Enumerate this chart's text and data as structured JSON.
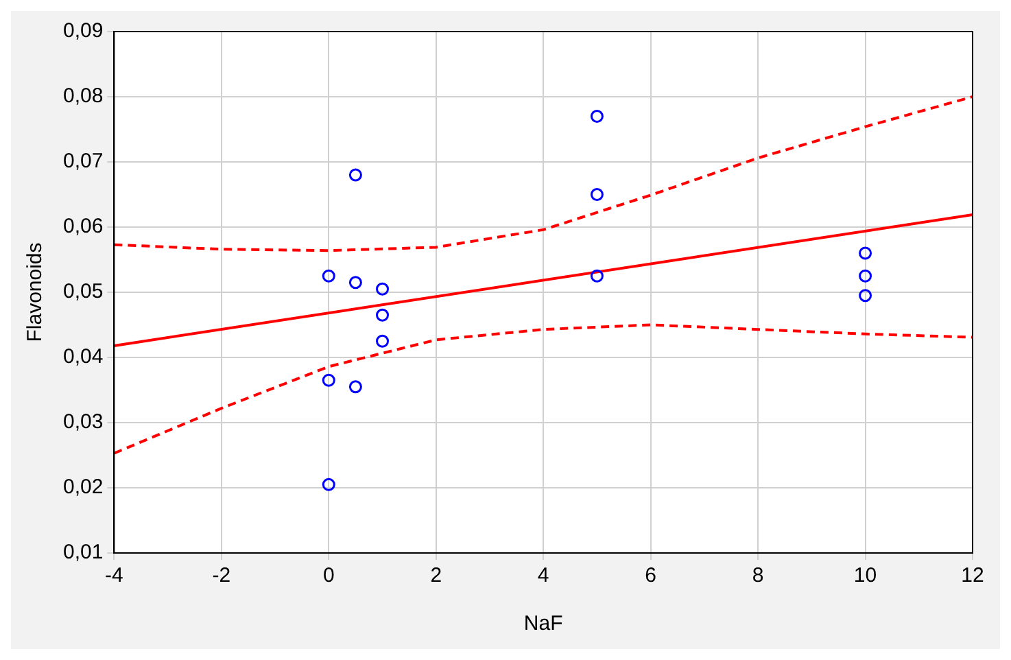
{
  "chart_data": {
    "type": "scatter",
    "xlabel": "NaF",
    "ylabel": "Flavonoids",
    "xlim": [
      -4,
      12
    ],
    "xticks": [
      -4,
      -2,
      0,
      2,
      4,
      6,
      8,
      10,
      12
    ],
    "ylim": [
      0.01,
      0.09
    ],
    "yticks": [
      {
        "value": 0.01,
        "label": "0,01"
      },
      {
        "value": 0.02,
        "label": "0,02"
      },
      {
        "value": 0.03,
        "label": "0,03"
      },
      {
        "value": 0.04,
        "label": "0,04"
      },
      {
        "value": 0.05,
        "label": "0,05"
      },
      {
        "value": 0.06,
        "label": "0,06"
      },
      {
        "value": 0.07,
        "label": "0,07"
      },
      {
        "value": 0.08,
        "label": "0,08"
      },
      {
        "value": 0.09,
        "label": "0,09"
      }
    ],
    "grid": true,
    "series": [
      {
        "type": "scatter",
        "marker": "circle",
        "color": "#0000ff",
        "x": [
          0,
          0,
          0,
          0.5,
          0.5,
          0.5,
          1,
          1,
          1,
          5,
          5,
          5,
          10,
          10,
          10
        ],
        "values": [
          0.0525,
          0.0365,
          0.0205,
          0.068,
          0.0515,
          0.0355,
          0.0505,
          0.0465,
          0.0425,
          0.077,
          0.065,
          0.0525,
          0.056,
          0.0525,
          0.0495
        ]
      },
      {
        "type": "line",
        "marker": "none",
        "line_style": "solid",
        "color": "#ff0000",
        "x": [
          -4,
          12
        ],
        "values": [
          0.0418,
          0.0619
        ]
      },
      {
        "type": "line",
        "marker": "none",
        "line_style": "dashed",
        "color": "#ff0000",
        "x": [
          -4,
          -2,
          0,
          2,
          4,
          6,
          8,
          10,
          12
        ],
        "values": [
          0.0573,
          0.0566,
          0.0564,
          0.0569,
          0.0596,
          0.0649,
          0.0706,
          0.0754,
          0.08
        ]
      },
      {
        "type": "line",
        "marker": "none",
        "line_style": "dashed",
        "color": "#ff0000",
        "x": [
          -4,
          -2,
          0,
          2,
          4,
          6,
          8,
          10,
          12
        ],
        "values": [
          0.0253,
          0.0322,
          0.0386,
          0.0427,
          0.0443,
          0.045,
          0.0443,
          0.0436,
          0.0431
        ]
      }
    ]
  }
}
